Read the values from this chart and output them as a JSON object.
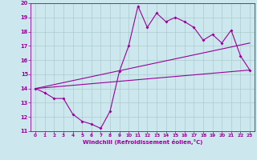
{
  "xlabel": "Windchill (Refroidissement éolien,°C)",
  "xlim": [
    -0.5,
    23.5
  ],
  "ylim": [
    11,
    20
  ],
  "xticks": [
    0,
    1,
    2,
    3,
    4,
    5,
    6,
    7,
    8,
    9,
    10,
    11,
    12,
    13,
    14,
    15,
    16,
    17,
    18,
    19,
    20,
    21,
    22,
    23
  ],
  "yticks": [
    11,
    12,
    13,
    14,
    15,
    16,
    17,
    18,
    19,
    20
  ],
  "bg_color": "#cce8ee",
  "line_color": "#990099",
  "grid_color": "#aacccc",
  "curve1_x": [
    0,
    1,
    2,
    3,
    4,
    5,
    6,
    7,
    8,
    9,
    10,
    11,
    12,
    13,
    14,
    15,
    16,
    17,
    18,
    19,
    20,
    21,
    22,
    23
  ],
  "curve1_y": [
    14.0,
    13.7,
    13.3,
    13.3,
    12.2,
    11.7,
    11.5,
    11.2,
    12.4,
    15.2,
    17.0,
    19.8,
    18.3,
    19.3,
    18.7,
    19.0,
    18.7,
    18.3,
    17.4,
    17.8,
    17.2,
    18.1,
    16.3,
    15.3
  ],
  "line1_x": [
    0,
    23
  ],
  "line1_y": [
    14.0,
    15.3
  ],
  "line2_x": [
    0,
    23
  ],
  "line2_y": [
    14.0,
    17.2
  ]
}
